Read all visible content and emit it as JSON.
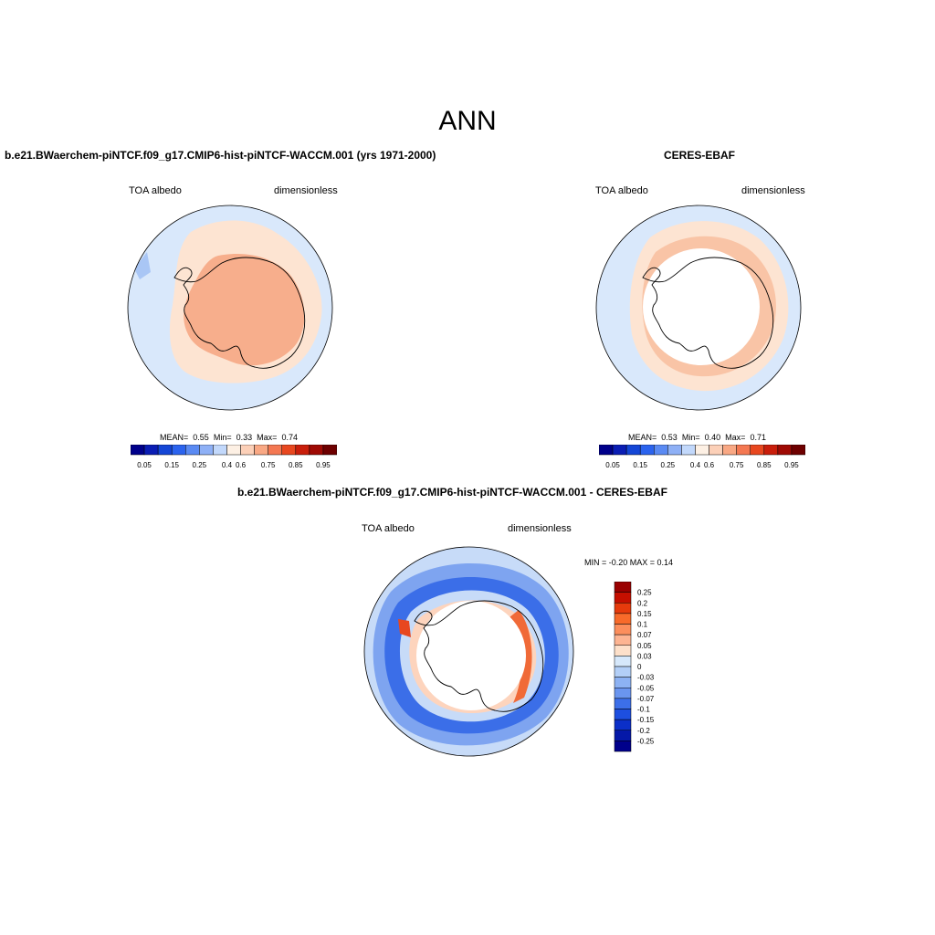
{
  "page": {
    "title": "ANN",
    "colors": {
      "land_white": "#ffffff",
      "coast": "#000000"
    }
  },
  "panels": {
    "model": {
      "title": "b.e21.BWaerchem-piNTCF.f09_g17.CMIP6-hist-piNTCF-WACCM.001 (yrs 1971-2000)",
      "variable": "TOA albedo",
      "units": "dimensionless",
      "mean_label": "MEAN=",
      "mean": "0.55",
      "min_label": "Min=",
      "min": "0.33",
      "max_label": "Max=",
      "max": "0.74"
    },
    "obs": {
      "title": "CERES-EBAF",
      "variable": "TOA albedo",
      "units": "dimensionless",
      "mean_label": "MEAN=",
      "mean": "0.53",
      "min_label": "Min=",
      "min": "0.40",
      "max_label": "Max=",
      "max": "0.71"
    },
    "diff": {
      "title": "b.e21.BWaerchem-piNTCF.f09_g17.CMIP6-hist-piNTCF-WACCM.001 - CERES-EBAF",
      "variable": "TOA albedo",
      "units": "dimensionless",
      "stats": "MIN =  -0.20 MAX =   0.14"
    }
  },
  "colorbar_abs": {
    "colors": [
      "#00008b",
      "#0a1db4",
      "#1446d6",
      "#2b63ee",
      "#5a8af3",
      "#8eb0f6",
      "#c2d8fb",
      "#fdf0e4",
      "#fcd0b8",
      "#f9a884",
      "#f47852",
      "#e8471f",
      "#c91e0b",
      "#9f0a04",
      "#6e0000"
    ],
    "labels": [
      "0.05",
      "0.15",
      "0.25",
      "0.4",
      "0.6",
      "0.75",
      "0.85",
      "0.95"
    ]
  },
  "colorbar_diff": {
    "colors": [
      "#9a0000",
      "#c50f00",
      "#e63a0c",
      "#f86a2a",
      "#fc8e5c",
      "#fdb492",
      "#fde0ca",
      "#d6e8fb",
      "#b3cff7",
      "#8db2f3",
      "#6a95ef",
      "#3c6fe9",
      "#1d4fe0",
      "#0b2fc8",
      "#0518a8",
      "#00008b"
    ],
    "labels": [
      "0.25",
      "0.2",
      "0.15",
      "0.1",
      "0.07",
      "0.05",
      "0.03",
      "0",
      "-0.03",
      "-0.05",
      "-0.07",
      "-0.1",
      "-0.15",
      "-0.2",
      "-0.25"
    ]
  }
}
